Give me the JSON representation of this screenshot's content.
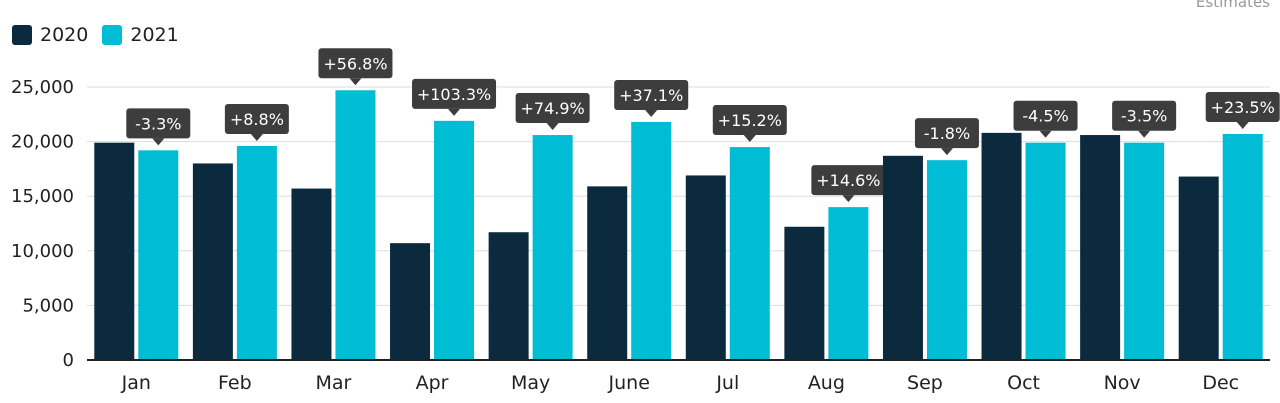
{
  "note": "Estimates",
  "colors": {
    "2020": "#0b2a3d",
    "2021": "#00bcd4",
    "annotation_bg": "#3d3d3d",
    "annotation_text": "#ffffff",
    "grid": "#dddddd",
    "axis": "#222222"
  },
  "legend": [
    {
      "label": "2020",
      "color": "#0b2a3d"
    },
    {
      "label": "2021",
      "color": "#00bcd4"
    }
  ],
  "chart_data": {
    "type": "bar",
    "categories": [
      "Jan",
      "Feb",
      "Mar",
      "Apr",
      "May",
      "June",
      "Jul",
      "Aug",
      "Sep",
      "Oct",
      "Nov",
      "Dec"
    ],
    "series": [
      {
        "name": "2020",
        "values": [
          19900,
          18000,
          15700,
          10700,
          11700,
          15900,
          16900,
          12200,
          18700,
          20800,
          20600,
          16800
        ]
      },
      {
        "name": "2021",
        "values": [
          19200,
          19600,
          24700,
          21900,
          20600,
          21800,
          19500,
          14000,
          18300,
          19900,
          19900,
          20700
        ]
      }
    ],
    "annotations": [
      "-3.3%",
      "+8.8%",
      "+56.8%",
      "+103.3%",
      "+74.9%",
      "+37.1%",
      "+15.2%",
      "+14.6%",
      "-1.8%",
      "-4.5%",
      "-3.5%",
      "+23.5%"
    ],
    "yticks": [
      0,
      5000,
      10000,
      15000,
      20000,
      25000
    ],
    "ytick_labels": [
      "0",
      "5,000",
      "10,000",
      "15,000",
      "20,000",
      "25,000"
    ],
    "ylim": [
      0,
      27500
    ],
    "grid": true,
    "legend_position": "top-left"
  }
}
